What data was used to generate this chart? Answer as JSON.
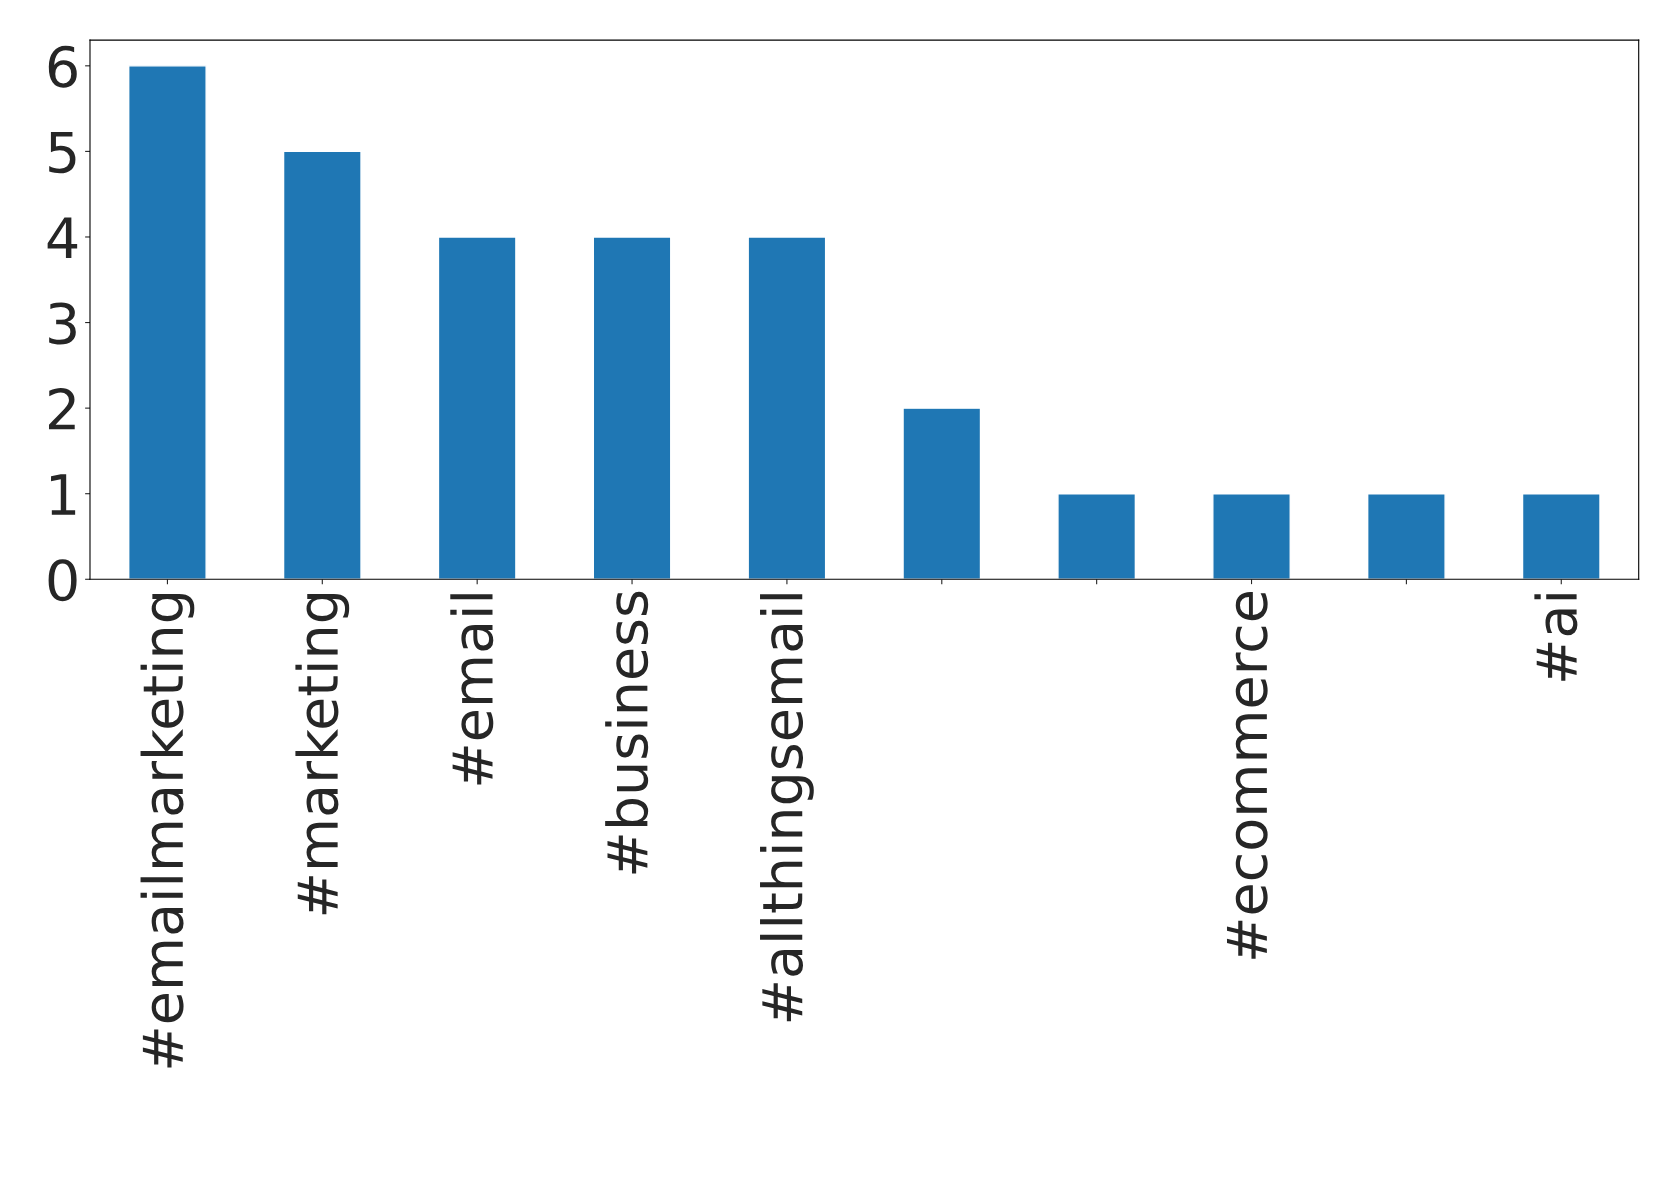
{
  "chart_data": {
    "type": "bar",
    "categories": [
      "#emailmarketing",
      "#marketing",
      "#email",
      "#business",
      "#allthingsemail",
      null,
      null,
      "#ecommerce",
      null,
      "#ai"
    ],
    "values": [
      6,
      5,
      4,
      4,
      4,
      2,
      1,
      1,
      1,
      1
    ],
    "color": "#1f77b4",
    "ylim": [
      0,
      6.3
    ],
    "yticks": [
      0,
      1,
      2,
      3,
      4,
      5,
      6
    ],
    "grid": false,
    "legend": false
  }
}
